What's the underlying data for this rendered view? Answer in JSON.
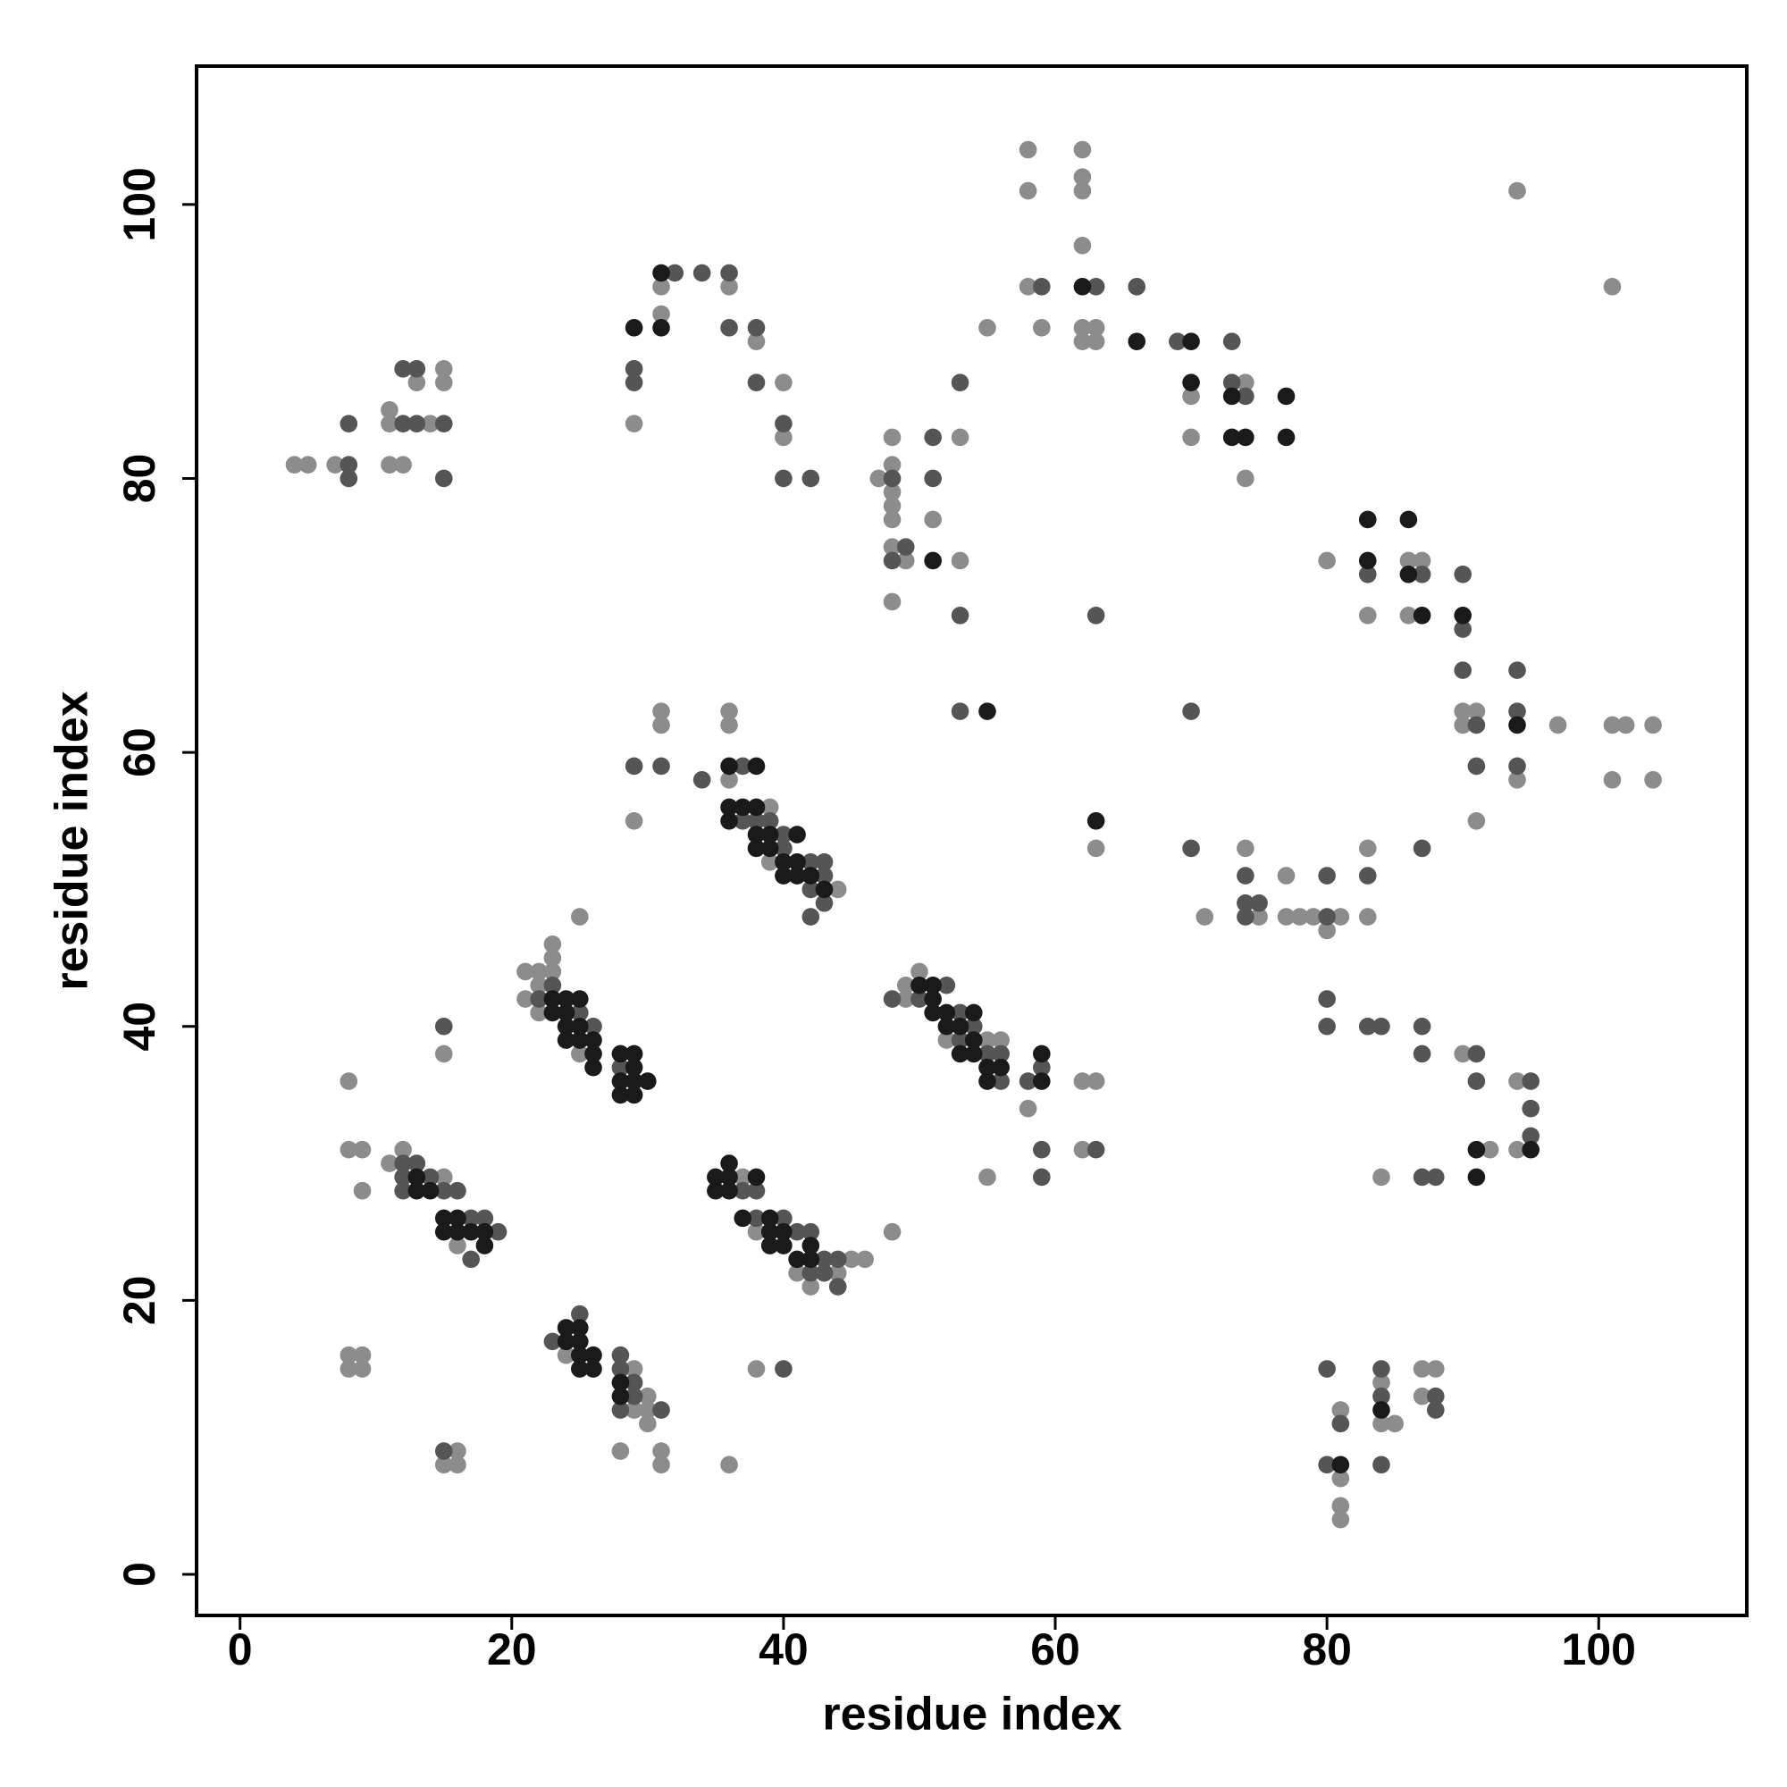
{
  "chart_data": {
    "type": "scatter",
    "xlabel": "residue index",
    "ylabel": "residue index",
    "xlim": [
      -3.2,
      110.9
    ],
    "ylim": [
      -3.0,
      110.1
    ],
    "xticks": [
      0,
      20,
      40,
      60,
      80,
      100
    ],
    "yticks": [
      0,
      20,
      40,
      60,
      80,
      100
    ],
    "grid": false,
    "series": [
      {
        "color": "#8c8c8c",
        "x": [
          4,
          5,
          7,
          11,
          11,
          11,
          12,
          13,
          14,
          15,
          15,
          29,
          31,
          31,
          36,
          38,
          40,
          40,
          47,
          48,
          48,
          48,
          48,
          48,
          48,
          48,
          49,
          51,
          53,
          53,
          55,
          58,
          58,
          58,
          59,
          62,
          62,
          62,
          62,
          62,
          62,
          63,
          63,
          70,
          70,
          74,
          74,
          80,
          83,
          86,
          86,
          87,
          90,
          90,
          91,
          91,
          94,
          97,
          101,
          102,
          101,
          104,
          104,
          94,
          101,
          63,
          71,
          74,
          75,
          77,
          77,
          78,
          79,
          80,
          81,
          83,
          83,
          90,
          92,
          94,
          94,
          84,
          81,
          81,
          81,
          81,
          84,
          84,
          85,
          87,
          88,
          87,
          29,
          31,
          31,
          36,
          36,
          36,
          39,
          39,
          44,
          21,
          21,
          22,
          22,
          22,
          23,
          23,
          23,
          25,
          25,
          49,
          49,
          50,
          52,
          55,
          56,
          58,
          55,
          62,
          63,
          62,
          8,
          8,
          9,
          9,
          15,
          11,
          12,
          15,
          16,
          37,
          38,
          41,
          42,
          44,
          45,
          46,
          48,
          24,
          29,
          29,
          30,
          30,
          30,
          28,
          31,
          31,
          38,
          36,
          8,
          8,
          9,
          9,
          15,
          16,
          16
        ],
        "values": [
          81,
          81,
          81,
          85,
          84,
          81,
          81,
          87,
          84,
          88,
          87,
          84,
          94,
          92,
          94,
          90,
          87,
          83,
          80,
          83,
          81,
          79,
          78,
          77,
          75,
          71,
          74,
          77,
          83,
          74,
          91,
          104,
          101,
          94,
          91,
          104,
          102,
          101,
          97,
          91,
          90,
          91,
          90,
          86,
          83,
          87,
          80,
          74,
          70,
          74,
          70,
          74,
          63,
          62,
          63,
          55,
          58,
          62,
          62,
          62,
          58,
          62,
          58,
          101,
          94,
          53,
          48,
          53,
          48,
          51,
          48,
          48,
          48,
          47,
          48,
          53,
          48,
          38,
          31,
          36,
          31,
          29,
          12,
          7,
          5,
          4,
          14,
          11,
          11,
          15,
          15,
          13,
          55,
          63,
          62,
          63,
          62,
          58,
          56,
          52,
          50,
          44,
          42,
          44,
          43,
          41,
          46,
          45,
          44,
          48,
          38,
          43,
          42,
          44,
          39,
          39,
          39,
          34,
          29,
          36,
          36,
          31,
          36,
          31,
          31,
          28,
          38,
          30,
          31,
          29,
          24,
          29,
          25,
          22,
          21,
          22,
          23,
          23,
          25,
          16,
          15,
          12,
          13,
          12,
          11,
          9,
          9,
          8,
          15,
          8,
          16,
          15,
          16,
          15,
          8,
          9,
          8
        ]
      },
      {
        "color": "#555555",
        "x": [
          8,
          8,
          8,
          12,
          12,
          13,
          13,
          15,
          15,
          29,
          29,
          32,
          34,
          36,
          36,
          38,
          38,
          40,
          40,
          42,
          48,
          48,
          49,
          51,
          51,
          53,
          53,
          53,
          59,
          63,
          66,
          63,
          69,
          73,
          73,
          74,
          70,
          83,
          87,
          90,
          90,
          90,
          91,
          91,
          94,
          94,
          94,
          70,
          74,
          74,
          74,
          75,
          80,
          80,
          83,
          87,
          80,
          80,
          83,
          84,
          87,
          87,
          91,
          91,
          95,
          95,
          95,
          87,
          88,
          80,
          80,
          81,
          84,
          84,
          84,
          88,
          88,
          29,
          31,
          34,
          37,
          37,
          38,
          39,
          40,
          40,
          42,
          42,
          42,
          43,
          43,
          43,
          22,
          23,
          25,
          26,
          28,
          48,
          50,
          52,
          53,
          53,
          54,
          55,
          56,
          56,
          58,
          59,
          59,
          59,
          63,
          15,
          12,
          12,
          12,
          13,
          14,
          15,
          16,
          17,
          17,
          18,
          19,
          37,
          38,
          38,
          40,
          41,
          42,
          42,
          43,
          43,
          44,
          44,
          23,
          25,
          28,
          28,
          28,
          29,
          29,
          31,
          40,
          15
        ],
        "values": [
          81,
          80,
          84,
          84,
          88,
          88,
          84,
          84,
          80,
          88,
          87,
          95,
          95,
          95,
          91,
          91,
          87,
          84,
          80,
          80,
          80,
          74,
          75,
          83,
          80,
          87,
          70,
          63,
          94,
          94,
          94,
          70,
          90,
          90,
          87,
          86,
          63,
          73,
          73,
          73,
          69,
          66,
          62,
          59,
          66,
          63,
          59,
          53,
          51,
          49,
          48,
          49,
          51,
          48,
          51,
          53,
          42,
          40,
          40,
          40,
          40,
          38,
          38,
          36,
          36,
          34,
          32,
          29,
          29,
          15,
          8,
          11,
          15,
          13,
          8,
          13,
          12,
          59,
          59,
          58,
          59,
          55,
          55,
          55,
          54,
          53,
          52,
          50,
          48,
          52,
          51,
          49,
          42,
          43,
          41,
          40,
          37,
          42,
          42,
          43,
          41,
          39,
          40,
          38,
          38,
          36,
          36,
          37,
          31,
          29,
          31,
          40,
          30,
          29,
          28,
          30,
          29,
          28,
          28,
          26,
          23,
          26,
          25,
          28,
          28,
          26,
          26,
          25,
          25,
          22,
          23,
          22,
          23,
          21,
          17,
          19,
          16,
          15,
          12,
          14,
          13,
          12,
          15,
          9
        ]
      },
      {
        "color": "#1a1a1a",
        "x": [
          29,
          31,
          31,
          51,
          55,
          62,
          66,
          70,
          70,
          73,
          73,
          74,
          77,
          77,
          83,
          83,
          86,
          86,
          87,
          90,
          94,
          63,
          91,
          91,
          95,
          81,
          84,
          36,
          38,
          36,
          36,
          37,
          38,
          38,
          38,
          39,
          39,
          40,
          40,
          41,
          41,
          41,
          42,
          43,
          23,
          23,
          24,
          24,
          24,
          24,
          25,
          25,
          25,
          26,
          26,
          26,
          28,
          28,
          28,
          29,
          29,
          29,
          29,
          30,
          50,
          51,
          51,
          51,
          52,
          52,
          53,
          53,
          54,
          54,
          54,
          55,
          55,
          56,
          59,
          59,
          13,
          13,
          14,
          15,
          15,
          16,
          16,
          17,
          18,
          18,
          35,
          35,
          36,
          36,
          36,
          38,
          37,
          39,
          39,
          39,
          40,
          40,
          41,
          42,
          42,
          24,
          24,
          25,
          25,
          25,
          25,
          26,
          26,
          28,
          28
        ],
        "values": [
          91,
          95,
          91,
          74,
          63,
          94,
          90,
          90,
          87,
          86,
          83,
          83,
          86,
          83,
          77,
          74,
          77,
          73,
          70,
          70,
          62,
          55,
          31,
          29,
          31,
          8,
          12,
          59,
          59,
          56,
          55,
          56,
          56,
          54,
          53,
          54,
          53,
          52,
          51,
          54,
          52,
          51,
          51,
          50,
          42,
          41,
          42,
          41,
          40,
          39,
          42,
          40,
          39,
          39,
          38,
          37,
          38,
          36,
          35,
          38,
          37,
          36,
          35,
          36,
          43,
          43,
          42,
          41,
          41,
          40,
          40,
          38,
          41,
          39,
          38,
          37,
          36,
          37,
          38,
          36,
          29,
          28,
          28,
          26,
          25,
          26,
          25,
          25,
          25,
          24,
          29,
          28,
          30,
          29,
          28,
          29,
          26,
          26,
          25,
          24,
          25,
          24,
          23,
          24,
          23,
          18,
          17,
          18,
          17,
          16,
          15,
          16,
          15,
          14,
          13
        ]
      }
    ]
  }
}
